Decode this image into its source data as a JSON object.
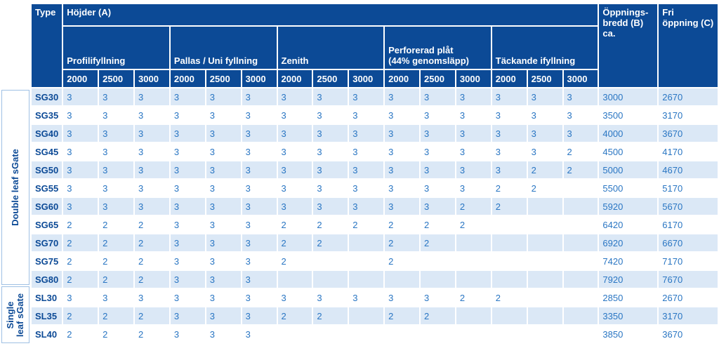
{
  "header": {
    "type": "Type",
    "heights": "Höjder (A)",
    "opening_width_line1": "Öppnings-",
    "opening_width_line2": "bredd (B)",
    "opening_width_line3": "ca.",
    "free_opening_line1": "Fri",
    "free_opening_line2": "öppning (C)"
  },
  "groups": [
    {
      "line1": "Profilifyllning",
      "line2": ""
    },
    {
      "line1": "Pallas / Uni fyllning",
      "line2": ""
    },
    {
      "line1": "Zenith",
      "line2": ""
    },
    {
      "line1": "Perforerad plåt",
      "line2": "(44% genomsläpp)"
    },
    {
      "line1": "Täckande ifyllning",
      "line2": ""
    }
  ],
  "height_columns": [
    "2000",
    "2500",
    "3000"
  ],
  "side_labels": {
    "double": "Double leaf sGate",
    "single_line1": "Single",
    "single_line2": "leaf sGate"
  },
  "rows": [
    {
      "type": "SG30",
      "cells": [
        "3",
        "3",
        "3",
        "3",
        "3",
        "3",
        "3",
        "3",
        "3",
        "3",
        "3",
        "3",
        "3",
        "3",
        "3"
      ],
      "width": "3000",
      "free": "2670"
    },
    {
      "type": "SG35",
      "cells": [
        "3",
        "3",
        "3",
        "3",
        "3",
        "3",
        "3",
        "3",
        "3",
        "3",
        "3",
        "3",
        "3",
        "3",
        "3"
      ],
      "width": "3500",
      "free": "3170"
    },
    {
      "type": "SG40",
      "cells": [
        "3",
        "3",
        "3",
        "3",
        "3",
        "3",
        "3",
        "3",
        "3",
        "3",
        "3",
        "3",
        "3",
        "3",
        "3"
      ],
      "width": "4000",
      "free": "3670"
    },
    {
      "type": "SG45",
      "cells": [
        "3",
        "3",
        "3",
        "3",
        "3",
        "3",
        "3",
        "3",
        "3",
        "3",
        "3",
        "3",
        "3",
        "3",
        "2"
      ],
      "width": "4500",
      "free": "4170"
    },
    {
      "type": "SG50",
      "cells": [
        "3",
        "3",
        "3",
        "3",
        "3",
        "3",
        "3",
        "3",
        "3",
        "3",
        "3",
        "3",
        "3",
        "2",
        "2"
      ],
      "width": "5000",
      "free": "4670"
    },
    {
      "type": "SG55",
      "cells": [
        "3",
        "3",
        "3",
        "3",
        "3",
        "3",
        "3",
        "3",
        "3",
        "3",
        "3",
        "3",
        "2",
        "2",
        ""
      ],
      "width": "5500",
      "free": "5170"
    },
    {
      "type": "SG60",
      "cells": [
        "3",
        "3",
        "3",
        "3",
        "3",
        "3",
        "3",
        "3",
        "3",
        "3",
        "3",
        "2",
        "2",
        "",
        ""
      ],
      "width": "5920",
      "free": "5670"
    },
    {
      "type": "SG65",
      "cells": [
        "2",
        "2",
        "2",
        "3",
        "3",
        "3",
        "2",
        "2",
        "2",
        "2",
        "2",
        "2",
        "",
        "",
        ""
      ],
      "width": "6420",
      "free": "6170"
    },
    {
      "type": "SG70",
      "cells": [
        "2",
        "2",
        "2",
        "3",
        "3",
        "3",
        "2",
        "2",
        "",
        "2",
        "2",
        "",
        "",
        "",
        ""
      ],
      "width": "6920",
      "free": "6670"
    },
    {
      "type": "SG75",
      "cells": [
        "2",
        "2",
        "2",
        "3",
        "3",
        "3",
        "2",
        "",
        "",
        "2",
        "",
        "",
        "",
        "",
        ""
      ],
      "width": "7420",
      "free": "7170"
    },
    {
      "type": "SG80",
      "cells": [
        "2",
        "2",
        "2",
        "3",
        "3",
        "3",
        "",
        "",
        "",
        "",
        "",
        "",
        "",
        "",
        ""
      ],
      "width": "7920",
      "free": "7670"
    },
    {
      "type": "SL30",
      "cells": [
        "3",
        "3",
        "3",
        "3",
        "3",
        "3",
        "3",
        "3",
        "3",
        "3",
        "3",
        "2",
        "2",
        "",
        ""
      ],
      "width": "2850",
      "free": "2670"
    },
    {
      "type": "SL35",
      "cells": [
        "2",
        "2",
        "2",
        "3",
        "3",
        "3",
        "2",
        "2",
        "",
        "2",
        "2",
        "",
        "",
        "",
        ""
      ],
      "width": "3350",
      "free": "3170"
    },
    {
      "type": "SL40",
      "cells": [
        "2",
        "2",
        "2",
        "3",
        "3",
        "3",
        "",
        "",
        "",
        "",
        "",
        "",
        "",
        "",
        ""
      ],
      "width": "3850",
      "free": "3670"
    }
  ]
}
